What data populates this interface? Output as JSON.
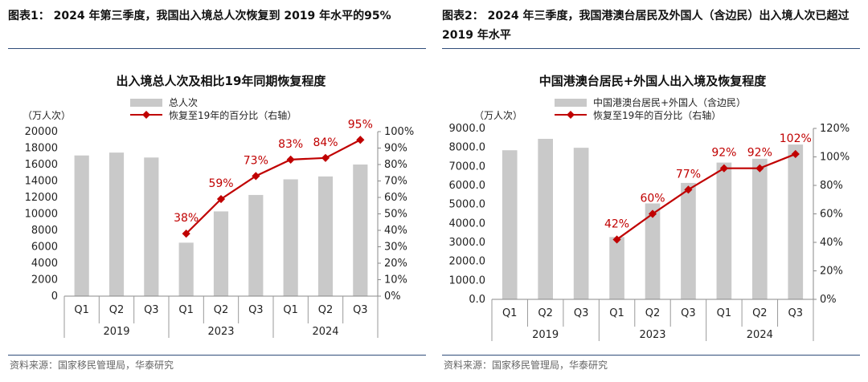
{
  "figures": [
    {
      "caption": "图表1： 2024 年第三季度，我国出入境总人次恢复到 2019 年水平的95%",
      "source": "资料来源：国家移民管理局，华泰研究"
    },
    {
      "caption": "图表2： 2024 年三季度，我国港澳台居民及外国人（含边民）出入境人次已超过 2019 年水平",
      "source": "资料来源：国家移民管理局，华泰研究"
    }
  ],
  "colors": {
    "bar": "#c9c9c9",
    "line": "#c00000",
    "label": "#c00000",
    "rule": "#2f4d7a"
  },
  "chart_data": [
    {
      "type": "bar",
      "title": "出入境总人次及相比19年同期恢复程度",
      "ylabel": "（万人次）",
      "categories": [
        "Q1",
        "Q2",
        "Q3",
        "Q1",
        "Q2",
        "Q3",
        "Q1",
        "Q2",
        "Q3"
      ],
      "year_groups": [
        "2019",
        "2023",
        "2024"
      ],
      "ylim": [
        0,
        20000
      ],
      "yticks": [
        "0",
        "2000",
        "4000",
        "6000",
        "8000",
        "10000",
        "12000",
        "14000",
        "16000",
        "18000",
        "20000"
      ],
      "y2lim": [
        0,
        100
      ],
      "y2ticks": [
        "0%",
        "10%",
        "20%",
        "30%",
        "40%",
        "50%",
        "60%",
        "70%",
        "80%",
        "90%",
        "100%"
      ],
      "legend_position": "top",
      "series": [
        {
          "name": "总人次",
          "type": "bar",
          "axis": "left",
          "values": [
            17100,
            17450,
            16850,
            6500,
            10300,
            12300,
            14200,
            14550,
            16000
          ]
        },
        {
          "name": "恢复至19年的百分比（右轴）",
          "type": "line",
          "axis": "right",
          "values": [
            null,
            null,
            null,
            38,
            59,
            73,
            83,
            84,
            95
          ],
          "labels": [
            "",
            "",
            "",
            "38%",
            "59%",
            "73%",
            "83%",
            "84%",
            "95%"
          ]
        }
      ]
    },
    {
      "type": "bar",
      "title": "中国港澳台居民+外国人出入境及恢复程度",
      "ylabel": "（万人次）",
      "categories": [
        "Q1",
        "Q2",
        "Q3",
        "Q1",
        "Q2",
        "Q3",
        "Q1",
        "Q2",
        "Q3"
      ],
      "year_groups": [
        "2019",
        "2023",
        "2024"
      ],
      "ylim": [
        0,
        9000
      ],
      "yticks": [
        "0.0",
        "1000.0",
        "2000.0",
        "3000.0",
        "4000.0",
        "5000.0",
        "6000.0",
        "7000.0",
        "8000.0",
        "9000.0"
      ],
      "y2lim": [
        0,
        120
      ],
      "y2ticks": [
        "0%",
        "20%",
        "40%",
        "60%",
        "80%",
        "100%",
        "120%"
      ],
      "legend_position": "top",
      "series": [
        {
          "name": "中国港澳台居民+外国人（含边民）",
          "type": "bar",
          "axis": "left",
          "values": [
            7850,
            8450,
            7980,
            3280,
            5050,
            6130,
            7200,
            7400,
            8150
          ]
        },
        {
          "name": "恢复至19年的百分比（右轴）",
          "type": "line",
          "axis": "right",
          "values": [
            null,
            null,
            null,
            42,
            60,
            77,
            92,
            92,
            102
          ],
          "labels": [
            "",
            "",
            "",
            "42%",
            "60%",
            "77%",
            "92%",
            "92%",
            "102%"
          ]
        }
      ]
    }
  ]
}
